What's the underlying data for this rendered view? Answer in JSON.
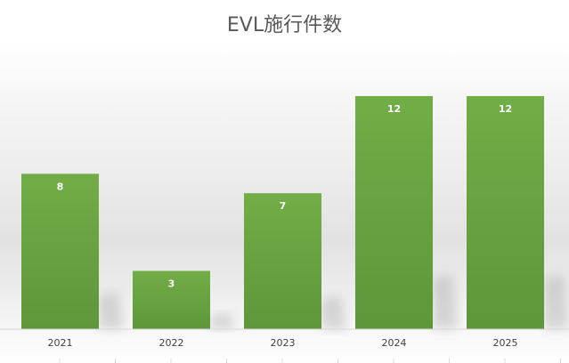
{
  "chart_data": {
    "type": "bar",
    "title": "EVL施行件数",
    "xlabel": "",
    "ylabel": "",
    "categories": [
      "2021",
      "2022",
      "2023",
      "2024",
      "2025"
    ],
    "values": [
      8,
      3,
      7,
      12,
      12
    ],
    "ylim": [
      0,
      12
    ],
    "grid": false,
    "data_labels": true,
    "bar_color": "#6ca843"
  }
}
